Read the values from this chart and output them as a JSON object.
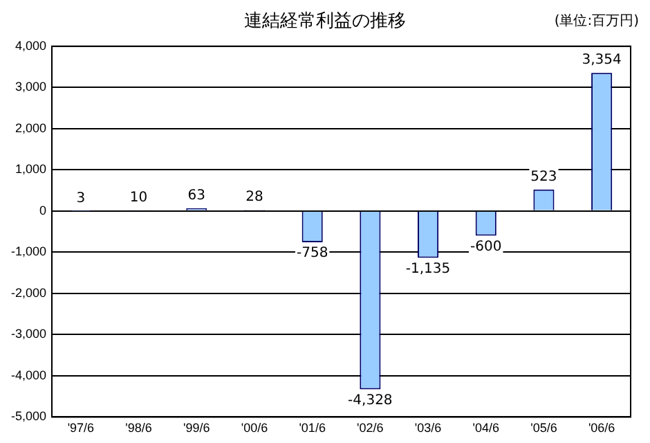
{
  "chart_data": {
    "type": "bar",
    "title": "連結経常利益の推移",
    "annotations": [
      "(単位:百万円)"
    ],
    "categories": [
      "'97/6",
      "'98/6",
      "'99/6",
      "'00/6",
      "'01/6",
      "'02/6",
      "'03/6",
      "'04/6",
      "'05/6",
      "'06/6"
    ],
    "values": [
      3,
      10,
      63,
      28,
      -758,
      -4328,
      -1135,
      -600,
      523,
      3354
    ],
    "value_labels": [
      "3",
      "10",
      "63",
      "28",
      "-758",
      "-4,328",
      "-1,135",
      "-600",
      "523",
      "3,354"
    ],
    "color": "#99ccff",
    "ylim": [
      -5000,
      4000
    ],
    "yticks": [
      {
        "value": -5000,
        "label": "-5,000"
      },
      {
        "value": -4000,
        "label": "-4,000"
      },
      {
        "value": -3000,
        "label": "-3,000"
      },
      {
        "value": -2000,
        "label": "-2,000"
      },
      {
        "value": -1000,
        "label": "-1,000"
      },
      0,
      {
        "value": 1000,
        "label": "1,000"
      },
      {
        "value": 2000,
        "label": "2,000"
      },
      {
        "value": 3000,
        "label": "3,000"
      },
      {
        "value": 4000,
        "label": "4,000"
      }
    ],
    "grid": "y",
    "legend": false
  }
}
